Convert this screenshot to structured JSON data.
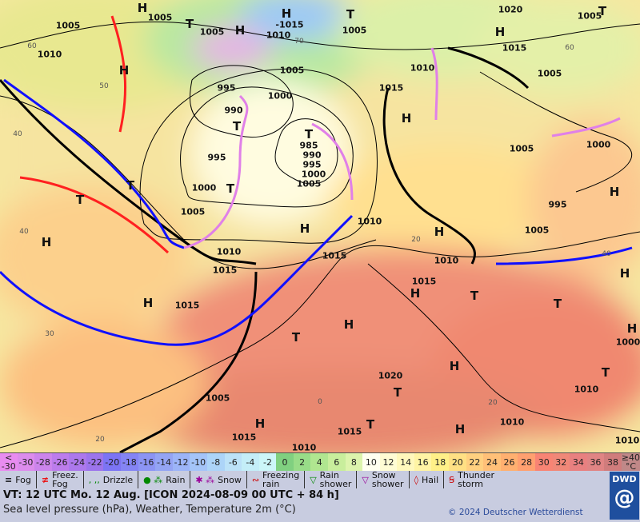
{
  "map": {
    "pressure_labels": [
      "1005",
      "1010",
      "1005",
      "1005",
      "-1015",
      "1010",
      "1005",
      "1020",
      "1005",
      "1015",
      "1005",
      "1010",
      "1005",
      "995",
      "1000",
      "990",
      "1015",
      "985",
      "990",
      "995",
      "1000",
      "1005",
      "995",
      "1000",
      "1005",
      "1010",
      "1010",
      "1015",
      "1015",
      "1010",
      "1015",
      "1015",
      "1020",
      "1000",
      "1010",
      "1005",
      "1015",
      "1015",
      "1010",
      "1010",
      "1005",
      "1000",
      "995",
      "1005",
      "1010"
    ],
    "centers": [
      "H",
      "T",
      "H",
      "H",
      "T",
      "T",
      "H",
      "H",
      "T",
      "T",
      "T",
      "T",
      "H",
      "H",
      "H",
      "H",
      "H",
      "H",
      "T",
      "H",
      "T",
      "H",
      "T",
      "H",
      "T",
      "H",
      "T",
      "H",
      "T",
      "H",
      "H",
      "T"
    ],
    "temperature_contour_labels": [
      "60",
      "50",
      "40",
      "40",
      "30",
      "20",
      "70",
      "60",
      "40",
      "20",
      "0",
      "20"
    ],
    "colors": {
      "warm_front": "#ff2020",
      "cold_front": "#1010ff",
      "occlusion": "#e080e8",
      "isobar": "#000000"
    }
  },
  "scale": {
    "cells": [
      {
        "label": "<\n-30",
        "color": "#e88cf0"
      },
      {
        "label": "-30",
        "color": "#dc8cec"
      },
      {
        "label": "-28",
        "color": "#cc84ec"
      },
      {
        "label": "-26",
        "color": "#bc7cec"
      },
      {
        "label": "-24",
        "color": "#ac78ec"
      },
      {
        "label": "-22",
        "color": "#9c74ec"
      },
      {
        "label": "-20",
        "color": "#7c74f4"
      },
      {
        "label": "-18",
        "color": "#8484f4"
      },
      {
        "label": "-16",
        "color": "#8c94f4"
      },
      {
        "label": "-14",
        "color": "#94a4f4"
      },
      {
        "label": "-12",
        "color": "#9cb4f8"
      },
      {
        "label": "-10",
        "color": "#a4c4f8"
      },
      {
        "label": "-8",
        "color": "#acd4f8"
      },
      {
        "label": "-6",
        "color": "#bce2f8"
      },
      {
        "label": "-4",
        "color": "#c4eef8"
      },
      {
        "label": "-2",
        "color": "#ccf6f8"
      },
      {
        "label": "0",
        "color": "#80d080"
      },
      {
        "label": "2",
        "color": "#98dc88"
      },
      {
        "label": "4",
        "color": "#b0e690"
      },
      {
        "label": "6",
        "color": "#c8ee9c"
      },
      {
        "label": "8",
        "color": "#dcf4ac"
      },
      {
        "label": "10",
        "color": "#fffff0"
      },
      {
        "label": "12",
        "color": "#fffcd4"
      },
      {
        "label": "14",
        "color": "#fff8bc"
      },
      {
        "label": "16",
        "color": "#fff4a4"
      },
      {
        "label": "18",
        "color": "#fff088"
      },
      {
        "label": "20",
        "color": "#ffe084"
      },
      {
        "label": "22",
        "color": "#ffd080"
      },
      {
        "label": "24",
        "color": "#ffc078"
      },
      {
        "label": "26",
        "color": "#ffb070"
      },
      {
        "label": "28",
        "color": "#ffa070"
      },
      {
        "label": "30",
        "color": "#f88474"
      },
      {
        "label": "32",
        "color": "#f08878"
      },
      {
        "label": "34",
        "color": "#e88080"
      },
      {
        "label": "36",
        "color": "#e08484"
      },
      {
        "label": "38",
        "color": "#d07c7c"
      },
      {
        "label": "≥40\n°C",
        "color": "#c08888"
      }
    ]
  },
  "legend": [
    {
      "icon": "fog-icon",
      "symbol": "≡",
      "label": "Fog",
      "color": "#000"
    },
    {
      "icon": "freezing-fog-icon",
      "symbol": "≢",
      "label": "Freez.\nFog",
      "color": "#e00"
    },
    {
      "icon": "drizzle-icon",
      "symbol": ", ,,",
      "label": "Drizzle",
      "color": "#080"
    },
    {
      "icon": "rain-icon",
      "symbol": "● ⁂",
      "label": "Rain",
      "color": "#080"
    },
    {
      "icon": "snow-icon",
      "symbol": "✱ ⁂",
      "label": "Snow",
      "color": "#909"
    },
    {
      "icon": "freezing-rain-icon",
      "symbol": "∾",
      "label": "Freezing\nrain",
      "color": "#c00"
    },
    {
      "icon": "rain-shower-icon",
      "symbol": "▽",
      "label": "Rain\nshower",
      "color": "#080"
    },
    {
      "icon": "snow-shower-icon",
      "symbol": "▽",
      "label": "Snow\nshower",
      "color": "#909"
    },
    {
      "icon": "hail-icon",
      "symbol": "◊",
      "label": "Hail",
      "color": "#c00"
    },
    {
      "icon": "thunderstorm-icon",
      "symbol": "Ꞩ",
      "label": "Thunder\nstorm",
      "color": "#c00"
    }
  ],
  "footer": {
    "valid_time": "VT: 12 UTC Mo.  12 Aug. [ICON 2024-08-09  00 UTC + 84 h]",
    "subtitle": "Sea level pressure (hPa), Weather, Temperature 2m (°C)",
    "copyright": "© 2024 Deutscher Wetterdienst",
    "logo": "DWD"
  }
}
